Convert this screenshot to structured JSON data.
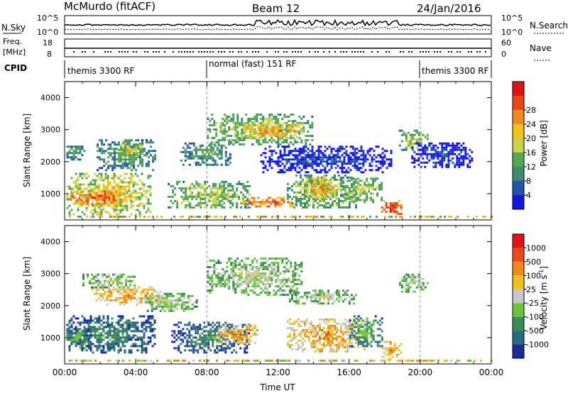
{
  "header": {
    "station": "McMurdo (fitACF)",
    "beam": "Beam 12",
    "date": "24/Jan/2016"
  },
  "params": {
    "nsky_label": "N.Sky",
    "nsky_ticks": [
      "10^5",
      "10^0"
    ],
    "nsearch_label": "N.Search",
    "nsearch_ticks": [
      "10^5",
      "10^0"
    ],
    "freq_label_1": "Freq.",
    "freq_label_2": "[MHz]",
    "freq_ticks": [
      "18",
      "8"
    ],
    "nave_label": "Nave",
    "nave_ticks": [
      "60",
      "0"
    ],
    "cpid_label": "CPID",
    "cpid_segments": [
      "themis 3300 RF",
      "normal (fast) 151 RF",
      "themis 3300 RF"
    ]
  },
  "chart_data": [
    {
      "type": "heatmap",
      "name": "power",
      "title": "",
      "xlabel": "",
      "ylabel": "Slant Range [km]",
      "xlim": [
        0,
        24
      ],
      "ylim": [
        180,
        4500
      ],
      "y_ticks": [
        "1000",
        "2000",
        "3000",
        "4000"
      ],
      "colorbar_label": "Power [dB]",
      "colorbar_ticks": [
        "4",
        "8",
        "12",
        "16",
        "20",
        "24",
        "28"
      ],
      "colorbar_colors": [
        "#1515e0",
        "#2255a8",
        "#3c8a70",
        "#56a84e",
        "#c8d24a",
        "#f2c21c",
        "#f08a20",
        "#e84818",
        "#e01414"
      ],
      "blobs": [
        {
          "t0": 0.1,
          "t1": 5.0,
          "r0": 300,
          "r1": 1650,
          "c": 5
        },
        {
          "t0": 0.3,
          "t1": 3.8,
          "r0": 600,
          "r1": 1100,
          "c": 7
        },
        {
          "t0": 0.1,
          "t1": 1.2,
          "r0": 2000,
          "r1": 2500,
          "c": 3
        },
        {
          "t0": 1.8,
          "t1": 5.2,
          "r0": 1700,
          "r1": 2700,
          "c": 3
        },
        {
          "t0": 3.0,
          "t1": 4.5,
          "r0": 2100,
          "r1": 2600,
          "c": 5
        },
        {
          "t0": 5.8,
          "t1": 10.5,
          "r0": 500,
          "r1": 1400,
          "c": 4
        },
        {
          "t0": 6.5,
          "t1": 9.5,
          "r0": 1850,
          "r1": 2600,
          "c": 3
        },
        {
          "t0": 8.0,
          "t1": 14.0,
          "r0": 2500,
          "r1": 3500,
          "c": 4
        },
        {
          "t0": 10.0,
          "t1": 13.5,
          "r0": 2700,
          "r1": 3200,
          "c": 6
        },
        {
          "t0": 10.0,
          "t1": 13.0,
          "r0": 550,
          "r1": 900,
          "c": 7
        },
        {
          "t0": 11.0,
          "t1": 18.5,
          "r0": 1600,
          "r1": 2500,
          "c": 1
        },
        {
          "t0": 12.5,
          "t1": 16.5,
          "r0": 500,
          "r1": 1600,
          "c": 4
        },
        {
          "t0": 13.5,
          "t1": 15.5,
          "r0": 800,
          "r1": 1500,
          "c": 6
        },
        {
          "t0": 15.5,
          "t1": 18.0,
          "r0": 700,
          "r1": 1500,
          "c": 4
        },
        {
          "t0": 17.8,
          "t1": 19.0,
          "r0": 300,
          "r1": 800,
          "c": 8
        },
        {
          "t0": 18.8,
          "t1": 20.5,
          "r0": 2300,
          "r1": 3000,
          "c": 4
        },
        {
          "t0": 19.5,
          "t1": 23.0,
          "r0": 1800,
          "r1": 2600,
          "c": 1
        }
      ]
    },
    {
      "type": "heatmap",
      "name": "velocity",
      "title": "",
      "xlabel": "Time UT",
      "ylabel": "Slant Range [km]",
      "xlim": [
        0,
        24
      ],
      "ylim": [
        180,
        4500
      ],
      "x_ticks": [
        "00:00",
        "04:00",
        "08:00",
        "12:00",
        "16:00",
        "20:00",
        "00:00"
      ],
      "y_ticks": [
        "1000",
        "2000",
        "3000",
        "4000"
      ],
      "colorbar_label": "Velocity [m s",
      "colorbar_label_sup": "-1",
      "colorbar_label_end": "]",
      "colorbar_ticks": [
        "1000",
        "500",
        "100",
        "25",
        "-25",
        "-100",
        "-500",
        "-1000"
      ],
      "colorbar_colors": [
        "#1a2a9a",
        "#2a6a80",
        "#3c8a5a",
        "#6cc43c",
        "#c8c8c8",
        "#f0c020",
        "#f08a18",
        "#e84a18",
        "#e01414"
      ],
      "blobs": [
        {
          "t0": 0.1,
          "t1": 5.2,
          "r0": 450,
          "r1": 1700,
          "c": 2
        },
        {
          "t0": 0.1,
          "t1": 1.5,
          "r0": 600,
          "r1": 1300,
          "c": 3
        },
        {
          "t0": 1.5,
          "t1": 5.5,
          "r0": 2000,
          "r1": 2600,
          "c": 6
        },
        {
          "t0": 1.0,
          "t1": 4.0,
          "r0": 2500,
          "r1": 3000,
          "c": 4
        },
        {
          "t0": 4.5,
          "t1": 7.5,
          "r0": 1800,
          "r1": 2400,
          "c": 4
        },
        {
          "t0": 6.0,
          "t1": 10.5,
          "r0": 500,
          "r1": 1500,
          "c": 2
        },
        {
          "t0": 8.0,
          "t1": 13.5,
          "r0": 2300,
          "r1": 3500,
          "c": 4
        },
        {
          "t0": 8.5,
          "t1": 11.0,
          "r0": 800,
          "r1": 1400,
          "c": 6
        },
        {
          "t0": 12.5,
          "t1": 17.0,
          "r0": 500,
          "r1": 1600,
          "c": 6
        },
        {
          "t0": 16.0,
          "t1": 18.0,
          "r0": 700,
          "r1": 1700,
          "c": 3
        },
        {
          "t0": 17.8,
          "t1": 19.0,
          "r0": 300,
          "r1": 900,
          "c": 6
        },
        {
          "t0": 12.5,
          "t1": 16.5,
          "r0": 2000,
          "r1": 2500,
          "c": 4
        },
        {
          "t0": 18.8,
          "t1": 20.5,
          "r0": 2400,
          "r1": 3000,
          "c": 4
        }
      ]
    }
  ]
}
